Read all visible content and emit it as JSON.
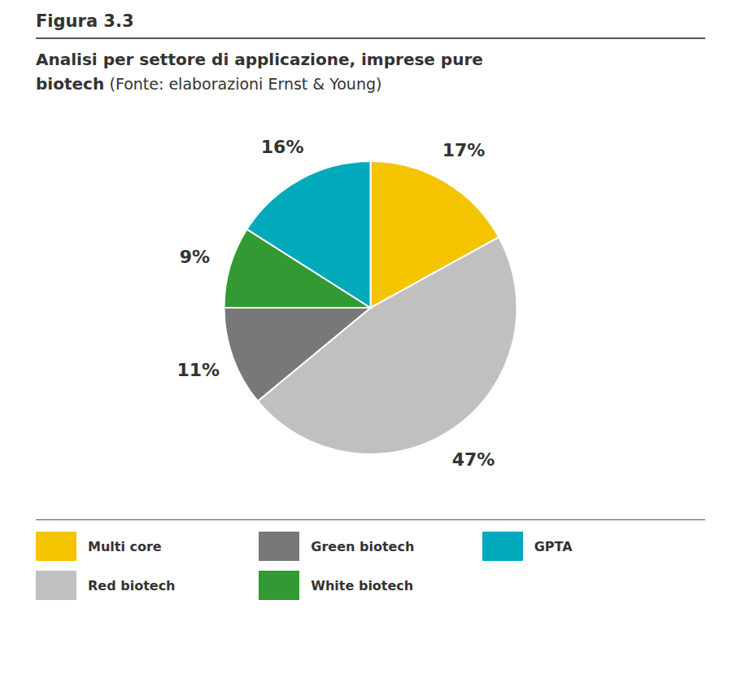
{
  "chart_data": {
    "type": "pie",
    "annotations": [
      "Figura 3.3"
    ],
    "title": "Analisi per settore di applicazione, imprese pure biotech",
    "subtitle": "(Fonte: elaborazioni Ernst & Young)",
    "categories": [
      "Multi core",
      "Red biotech",
      "Green biotech",
      "White biotech",
      "GPTA"
    ],
    "values": [
      17,
      47,
      11,
      9,
      16
    ],
    "value_labels": [
      "17%",
      "47%",
      "11%",
      "9%",
      "16%"
    ],
    "colors": [
      "#F5C400",
      "#C0C0C0",
      "#787878",
      "#339933",
      "#00AABB"
    ],
    "data_labels": true,
    "legend": "bottom"
  }
}
